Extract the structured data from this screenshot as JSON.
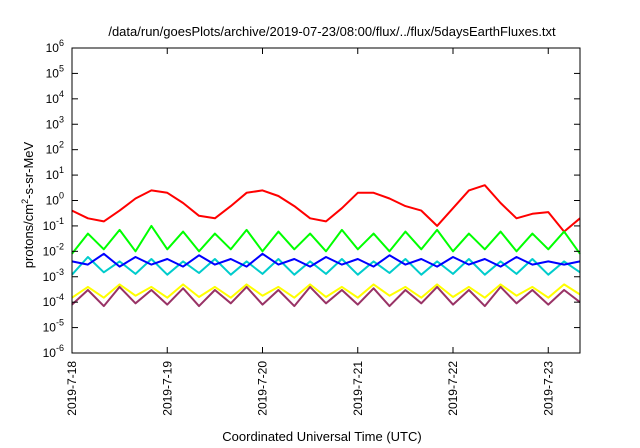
{
  "chart_data": {
    "type": "line",
    "title": "/data/run/goesPlots/archive/2019-07-23/08:00/flux/../flux/5daysEarthFluxes.txt",
    "xlabel": "Coordinated Universal Time (UTC)",
    "ylabel": "protons/cm²-s-sr-MeV",
    "ylabel_parts": [
      "protons/cm",
      "2",
      "-s-sr-MeV"
    ],
    "yscale": "log",
    "ylim": [
      1e-06,
      1000000.0
    ],
    "yticks": [
      {
        "base": "10",
        "exp": "-6",
        "value": 1e-06
      },
      {
        "base": "10",
        "exp": "-5",
        "value": 1e-05
      },
      {
        "base": "10",
        "exp": "-4",
        "value": 0.0001
      },
      {
        "base": "10",
        "exp": "-3",
        "value": 0.001
      },
      {
        "base": "10",
        "exp": "-2",
        "value": 0.01
      },
      {
        "base": "10",
        "exp": "-1",
        "value": 0.1
      },
      {
        "base": "10",
        "exp": "0",
        "value": 1
      },
      {
        "base": "10",
        "exp": "1",
        "value": 10
      },
      {
        "base": "10",
        "exp": "2",
        "value": 100
      },
      {
        "base": "10",
        "exp": "3",
        "value": 1000
      },
      {
        "base": "10",
        "exp": "4",
        "value": 10000
      },
      {
        "base": "10",
        "exp": "5",
        "value": 100000
      },
      {
        "base": "10",
        "exp": "6",
        "value": 1000000
      }
    ],
    "xlim": [
      "2019-07-18T00:00",
      "2019-07-23T08:00"
    ],
    "xticks": [
      "2019-7-18",
      "2019-7-19",
      "2019-7-20",
      "2019-7-21",
      "2019-7-22",
      "2019-7-23"
    ],
    "grid": false,
    "legend": "none",
    "series": [
      {
        "color": "#ff0000",
        "x": [
          "2019-07-18T00:00",
          "2019-07-18T04:00",
          "2019-07-18T08:00",
          "2019-07-18T12:00",
          "2019-07-18T16:00",
          "2019-07-18T20:00",
          "2019-07-19T00:00",
          "2019-07-19T04:00",
          "2019-07-19T08:00",
          "2019-07-19T12:00",
          "2019-07-19T16:00",
          "2019-07-19T20:00",
          "2019-07-20T00:00",
          "2019-07-20T04:00",
          "2019-07-20T08:00",
          "2019-07-20T12:00",
          "2019-07-20T16:00",
          "2019-07-20T20:00",
          "2019-07-21T00:00",
          "2019-07-21T04:00",
          "2019-07-21T08:00",
          "2019-07-21T12:00",
          "2019-07-21T16:00",
          "2019-07-21T20:00",
          "2019-07-22T00:00",
          "2019-07-22T04:00",
          "2019-07-22T08:00",
          "2019-07-22T12:00",
          "2019-07-22T16:00",
          "2019-07-22T20:00",
          "2019-07-23T00:00",
          "2019-07-23T04:00",
          "2019-07-23T08:00"
        ],
        "y": [
          0.4,
          0.2,
          0.15,
          0.4,
          1.2,
          2.5,
          2.0,
          0.8,
          0.25,
          0.2,
          0.6,
          2.0,
          2.5,
          1.5,
          0.6,
          0.2,
          0.15,
          0.5,
          2.0,
          2.0,
          1.2,
          0.6,
          0.4,
          0.1,
          0.5,
          2.5,
          4.0,
          0.8,
          0.2,
          0.3,
          0.35,
          0.06,
          0.2
        ]
      },
      {
        "color": "#00ff00",
        "x": [
          "2019-07-18T00:00",
          "2019-07-18T04:00",
          "2019-07-18T08:00",
          "2019-07-18T12:00",
          "2019-07-18T16:00",
          "2019-07-18T20:00",
          "2019-07-19T00:00",
          "2019-07-19T04:00",
          "2019-07-19T08:00",
          "2019-07-19T12:00",
          "2019-07-19T16:00",
          "2019-07-19T20:00",
          "2019-07-20T00:00",
          "2019-07-20T04:00",
          "2019-07-20T08:00",
          "2019-07-20T12:00",
          "2019-07-20T16:00",
          "2019-07-20T20:00",
          "2019-07-21T00:00",
          "2019-07-21T04:00",
          "2019-07-21T08:00",
          "2019-07-21T12:00",
          "2019-07-21T16:00",
          "2019-07-21T20:00",
          "2019-07-22T00:00",
          "2019-07-22T04:00",
          "2019-07-22T08:00",
          "2019-07-22T12:00",
          "2019-07-22T16:00",
          "2019-07-22T20:00",
          "2019-07-23T00:00",
          "2019-07-23T04:00",
          "2019-07-23T08:00"
        ],
        "y": [
          0.008,
          0.05,
          0.012,
          0.07,
          0.01,
          0.1,
          0.012,
          0.06,
          0.01,
          0.05,
          0.012,
          0.07,
          0.01,
          0.06,
          0.012,
          0.05,
          0.01,
          0.07,
          0.012,
          0.05,
          0.01,
          0.06,
          0.012,
          0.07,
          0.01,
          0.05,
          0.012,
          0.06,
          0.01,
          0.05,
          0.012,
          0.06,
          0.008
        ]
      },
      {
        "color": "#00cccc",
        "x": [
          "2019-07-18T00:00",
          "2019-07-18T04:00",
          "2019-07-18T08:00",
          "2019-07-18T12:00",
          "2019-07-18T16:00",
          "2019-07-18T20:00",
          "2019-07-19T00:00",
          "2019-07-19T04:00",
          "2019-07-19T08:00",
          "2019-07-19T12:00",
          "2019-07-19T16:00",
          "2019-07-19T20:00",
          "2019-07-20T00:00",
          "2019-07-20T04:00",
          "2019-07-20T08:00",
          "2019-07-20T12:00",
          "2019-07-20T16:00",
          "2019-07-20T20:00",
          "2019-07-21T00:00",
          "2019-07-21T04:00",
          "2019-07-21T08:00",
          "2019-07-21T12:00",
          "2019-07-21T16:00",
          "2019-07-21T20:00",
          "2019-07-22T00:00",
          "2019-07-22T04:00",
          "2019-07-22T08:00",
          "2019-07-22T12:00",
          "2019-07-22T16:00",
          "2019-07-22T20:00",
          "2019-07-23T00:00",
          "2019-07-23T04:00",
          "2019-07-23T08:00"
        ],
        "y": [
          0.0012,
          0.006,
          0.0015,
          0.004,
          0.0013,
          0.005,
          0.0012,
          0.004,
          0.0014,
          0.005,
          0.0012,
          0.004,
          0.0013,
          0.005,
          0.0012,
          0.004,
          0.0013,
          0.005,
          0.0012,
          0.004,
          0.0014,
          0.005,
          0.0012,
          0.004,
          0.0013,
          0.005,
          0.0012,
          0.004,
          0.0013,
          0.005,
          0.0012,
          0.004,
          0.0015
        ]
      },
      {
        "color": "#0000ff",
        "x": [
          "2019-07-18T00:00",
          "2019-07-18T04:00",
          "2019-07-18T08:00",
          "2019-07-18T12:00",
          "2019-07-18T16:00",
          "2019-07-18T20:00",
          "2019-07-19T00:00",
          "2019-07-19T04:00",
          "2019-07-19T08:00",
          "2019-07-19T12:00",
          "2019-07-19T16:00",
          "2019-07-19T20:00",
          "2019-07-20T00:00",
          "2019-07-20T04:00",
          "2019-07-20T08:00",
          "2019-07-20T12:00",
          "2019-07-20T16:00",
          "2019-07-20T20:00",
          "2019-07-21T00:00",
          "2019-07-21T04:00",
          "2019-07-21T08:00",
          "2019-07-21T12:00",
          "2019-07-21T16:00",
          "2019-07-21T20:00",
          "2019-07-22T00:00",
          "2019-07-22T04:00",
          "2019-07-22T08:00",
          "2019-07-22T12:00",
          "2019-07-22T16:00",
          "2019-07-22T20:00",
          "2019-07-23T00:00",
          "2019-07-23T04:00",
          "2019-07-23T08:00"
        ],
        "y": [
          0.004,
          0.003,
          0.008,
          0.0025,
          0.006,
          0.003,
          0.005,
          0.0025,
          0.007,
          0.003,
          0.005,
          0.0025,
          0.008,
          0.003,
          0.005,
          0.0025,
          0.006,
          0.003,
          0.005,
          0.0025,
          0.007,
          0.003,
          0.005,
          0.0025,
          0.006,
          0.003,
          0.005,
          0.0025,
          0.006,
          0.003,
          0.004,
          0.003,
          0.004
        ]
      },
      {
        "color": "#ffff00",
        "x": [
          "2019-07-18T00:00",
          "2019-07-18T04:00",
          "2019-07-18T08:00",
          "2019-07-18T12:00",
          "2019-07-18T16:00",
          "2019-07-18T20:00",
          "2019-07-19T00:00",
          "2019-07-19T04:00",
          "2019-07-19T08:00",
          "2019-07-19T12:00",
          "2019-07-19T16:00",
          "2019-07-19T20:00",
          "2019-07-20T00:00",
          "2019-07-20T04:00",
          "2019-07-20T08:00",
          "2019-07-20T12:00",
          "2019-07-20T16:00",
          "2019-07-20T20:00",
          "2019-07-21T00:00",
          "2019-07-21T04:00",
          "2019-07-21T08:00",
          "2019-07-21T12:00",
          "2019-07-21T16:00",
          "2019-07-21T20:00",
          "2019-07-22T00:00",
          "2019-07-22T04:00",
          "2019-07-22T08:00",
          "2019-07-22T12:00",
          "2019-07-22T16:00",
          "2019-07-22T20:00",
          "2019-07-23T00:00",
          "2019-07-23T04:00",
          "2019-07-23T08:00"
        ],
        "y": [
          0.00015,
          0.0004,
          0.00015,
          0.0005,
          0.00018,
          0.0004,
          0.00015,
          0.0005,
          0.00016,
          0.0004,
          0.00015,
          0.0005,
          0.00018,
          0.0004,
          0.00015,
          0.0005,
          0.00016,
          0.0004,
          0.00015,
          0.0005,
          0.00018,
          0.0004,
          0.00015,
          0.0005,
          0.00016,
          0.0004,
          0.00015,
          0.0005,
          0.00018,
          0.0004,
          0.00015,
          0.0005,
          0.0002
        ]
      },
      {
        "color": "#993366",
        "x": [
          "2019-07-18T00:00",
          "2019-07-18T04:00",
          "2019-07-18T08:00",
          "2019-07-18T12:00",
          "2019-07-18T16:00",
          "2019-07-18T20:00",
          "2019-07-19T00:00",
          "2019-07-19T04:00",
          "2019-07-19T08:00",
          "2019-07-19T12:00",
          "2019-07-19T16:00",
          "2019-07-19T20:00",
          "2019-07-20T00:00",
          "2019-07-20T04:00",
          "2019-07-20T08:00",
          "2019-07-20T12:00",
          "2019-07-20T16:00",
          "2019-07-20T20:00",
          "2019-07-21T00:00",
          "2019-07-21T04:00",
          "2019-07-21T08:00",
          "2019-07-21T12:00",
          "2019-07-21T16:00",
          "2019-07-21T20:00",
          "2019-07-22T00:00",
          "2019-07-22T04:00",
          "2019-07-22T08:00",
          "2019-07-22T12:00",
          "2019-07-22T16:00",
          "2019-07-22T20:00",
          "2019-07-23T00:00",
          "2019-07-23T04:00",
          "2019-07-23T08:00"
        ],
        "y": [
          8e-05,
          0.0003,
          7e-05,
          0.0004,
          9e-05,
          0.0003,
          8e-05,
          0.00035,
          7e-05,
          0.0003,
          9e-05,
          0.0004,
          8e-05,
          0.0003,
          7e-05,
          0.0004,
          9e-05,
          0.0003,
          8e-05,
          0.00035,
          7e-05,
          0.0003,
          9e-05,
          0.0004,
          8e-05,
          0.0003,
          7e-05,
          0.0004,
          9e-05,
          0.0003,
          8e-05,
          0.0003,
          0.0001
        ]
      }
    ]
  }
}
